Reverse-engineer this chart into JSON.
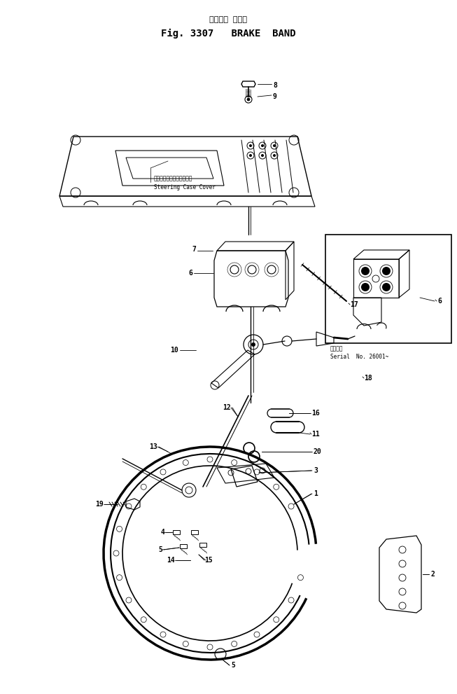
{
  "title_japanese": "ブレーキ バンド",
  "title_english": "Fig. 3307   BRAKE  BAND",
  "background_color": "#ffffff",
  "line_color": "#000000",
  "fig_width": 6.53,
  "fig_height": 9.91,
  "dpi": 100,
  "steering_jp": "ステアリングケースカバー",
  "steering_en": "Steering Case Cover",
  "serial_jp": "適用号機",
  "serial_en": "Serial  No. 26001~"
}
